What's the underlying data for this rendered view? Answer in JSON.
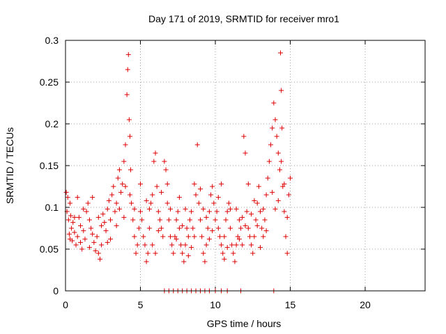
{
  "chart_data": {
    "type": "scatter",
    "title": "Day 171 of 2019, SRMTID for receiver mro1",
    "xlabel": "GPS time / hours",
    "ylabel": "SRMTID / TECUs",
    "xlim": [
      0,
      24
    ],
    "ylim": [
      0,
      0.3
    ],
    "xticks": [
      0,
      5,
      10,
      15,
      20
    ],
    "xtick_labels": [
      "0",
      "5",
      "10",
      "15",
      "20"
    ],
    "yticks": [
      0,
      0.05,
      0.1,
      0.15,
      0.2,
      0.25,
      0.3
    ],
    "ytick_labels": [
      "0",
      "0.05",
      "0.1",
      "0.15",
      "0.2",
      "0.25",
      "0.3"
    ],
    "grid": true,
    "marker": "+",
    "color": "#dd0000",
    "series": [
      {
        "name": "SRMTID",
        "points": [
          [
            0.05,
            0.118
          ],
          [
            0.1,
            0.095
          ],
          [
            0.15,
            0.112
          ],
          [
            0.2,
            0.085
          ],
          [
            0.25,
            0.068
          ],
          [
            0.3,
            0.105
          ],
          [
            0.35,
            0.09
          ],
          [
            0.4,
            0.075
          ],
          [
            0.45,
            0.06
          ],
          [
            0.5,
            0.082
          ],
          [
            0.6,
            0.07
          ],
          [
            0.7,
            0.055
          ],
          [
            0.8,
            0.065
          ],
          [
            0.9,
            0.088
          ],
          [
            1.0,
            0.078
          ],
          [
            1.1,
            0.05
          ],
          [
            1.2,
            0.072
          ],
          [
            1.3,
            0.062
          ],
          [
            1.4,
            0.095
          ],
          [
            1.5,
            0.105
          ],
          [
            1.6,
            0.085
          ],
          [
            1.7,
            0.075
          ],
          [
            1.8,
            0.068
          ],
          [
            1.9,
            0.058
          ],
          [
            2.0,
            0.048
          ],
          [
            2.1,
            0.065
          ],
          [
            2.2,
            0.045
          ],
          [
            2.3,
            0.038
          ],
          [
            2.4,
            0.055
          ],
          [
            2.5,
            0.092
          ],
          [
            2.6,
            0.082
          ],
          [
            2.7,
            0.072
          ],
          [
            2.8,
            0.098
          ],
          [
            2.9,
            0.108
          ],
          [
            3.0,
            0.085
          ],
          [
            3.1,
            0.115
          ],
          [
            3.2,
            0.125
          ],
          [
            3.3,
            0.095
          ],
          [
            3.4,
            0.105
          ],
          [
            3.5,
            0.135
          ],
          [
            3.6,
            0.145
          ],
          [
            3.7,
            0.118
          ],
          [
            3.8,
            0.128
          ],
          [
            3.9,
            0.155
          ],
          [
            4.0,
            0.175
          ],
          [
            4.1,
            0.235
          ],
          [
            4.15,
            0.265
          ],
          [
            4.2,
            0.283
          ],
          [
            4.25,
            0.205
          ],
          [
            4.3,
            0.185
          ],
          [
            4.35,
            0.145
          ],
          [
            4.4,
            0.105
          ],
          [
            4.5,
            0.085
          ],
          [
            4.6,
            0.065
          ],
          [
            4.7,
            0.045
          ],
          [
            4.8,
            0.055
          ],
          [
            4.9,
            0.075
          ],
          [
            5.0,
            0.095
          ],
          [
            5.1,
            0.085
          ],
          [
            5.2,
            0.065
          ],
          [
            5.3,
            0.055
          ],
          [
            5.4,
            0.035
          ],
          [
            5.5,
            0.045
          ],
          [
            5.6,
            0.075
          ],
          [
            5.7,
            0.105
          ],
          [
            5.8,
            0.115
          ],
          [
            5.9,
            0.155
          ],
          [
            6.0,
            0.165
          ],
          [
            6.1,
            0.125
          ],
          [
            6.2,
            0.095
          ],
          [
            6.3,
            0.085
          ],
          [
            6.4,
            0.075
          ],
          [
            6.5,
            0.065
          ],
          [
            6.6,
            0.155
          ],
          [
            6.7,
            0.145
          ],
          [
            6.8,
            0.105
          ],
          [
            6.9,
            0.085
          ],
          [
            7.0,
            0.065
          ],
          [
            7.1,
            0.055
          ],
          [
            7.2,
            0.045
          ],
          [
            7.3,
            0.065
          ],
          [
            7.4,
            0.085
          ],
          [
            7.5,
            0.095
          ],
          [
            7.6,
            0.075
          ],
          [
            7.7,
            0.055
          ],
          [
            7.8,
            0.045
          ],
          [
            7.9,
            0.035
          ],
          [
            8.0,
            0.055
          ],
          [
            8.1,
            0.075
          ],
          [
            8.2,
            0.065
          ],
          [
            8.3,
            0.085
          ],
          [
            8.4,
            0.095
          ],
          [
            8.5,
            0.075
          ],
          [
            8.6,
            0.065
          ],
          [
            8.7,
            0.115
          ],
          [
            8.8,
            0.175
          ],
          [
            8.9,
            0.105
          ],
          [
            9.0,
            0.085
          ],
          [
            9.1,
            0.065
          ],
          [
            9.2,
            0.045
          ],
          [
            9.3,
            0.035
          ],
          [
            9.4,
            0.055
          ],
          [
            9.5,
            0.075
          ],
          [
            9.6,
            0.095
          ],
          [
            9.7,
            0.115
          ],
          [
            9.8,
            0.125
          ],
          [
            9.9,
            0.105
          ],
          [
            10.0,
            0.085
          ],
          [
            10.1,
            0.095
          ],
          [
            10.2,
            0.075
          ],
          [
            10.3,
            0.065
          ],
          [
            10.4,
            0.055
          ],
          [
            10.5,
            0.045
          ],
          [
            10.6,
            0.065
          ],
          [
            10.7,
            0.085
          ],
          [
            10.8,
            0.095
          ],
          [
            10.9,
            0.105
          ],
          [
            11.0,
            0.075
          ],
          [
            11.1,
            0.055
          ],
          [
            11.2,
            0.045
          ],
          [
            11.3,
            0.035
          ],
          [
            11.4,
            0.055
          ],
          [
            11.5,
            0.065
          ],
          [
            11.6,
            0.085
          ],
          [
            11.7,
            0.075
          ],
          [
            11.8,
            0.055
          ],
          [
            11.9,
            0.185
          ],
          [
            12.0,
            0.165
          ],
          [
            12.1,
            0.095
          ],
          [
            12.2,
            0.075
          ],
          [
            12.3,
            0.065
          ],
          [
            12.4,
            0.055
          ],
          [
            12.5,
            0.045
          ],
          [
            12.6,
            0.065
          ],
          [
            12.7,
            0.085
          ],
          [
            12.8,
            0.105
          ],
          [
            12.9,
            0.125
          ],
          [
            13.0,
            0.095
          ],
          [
            13.1,
            0.075
          ],
          [
            13.2,
            0.065
          ],
          [
            13.3,
            0.085
          ],
          [
            13.4,
            0.115
          ],
          [
            13.5,
            0.135
          ],
          [
            13.6,
            0.155
          ],
          [
            13.7,
            0.175
          ],
          [
            13.8,
            0.195
          ],
          [
            13.9,
            0.225
          ],
          [
            14.0,
            0.205
          ],
          [
            14.1,
            0.185
          ],
          [
            14.2,
            0.165
          ],
          [
            14.3,
            0.145
          ],
          [
            14.35,
            0.285
          ],
          [
            14.4,
            0.24
          ],
          [
            14.45,
            0.195
          ],
          [
            14.5,
            0.125
          ],
          [
            14.6,
            0.095
          ],
          [
            14.7,
            0.065
          ],
          [
            14.8,
            0.045
          ],
          [
            14.9,
            0.115
          ],
          [
            15.0,
            0.135
          ],
          [
            0.3,
            0.062
          ],
          [
            0.6,
            0.088
          ],
          [
            1.2,
            0.098
          ],
          [
            1.8,
            0.112
          ],
          [
            2.4,
            0.078
          ],
          [
            3.0,
            0.062
          ],
          [
            3.6,
            0.098
          ],
          [
            4.3,
            0.115
          ],
          [
            5.0,
            0.128
          ],
          [
            5.6,
            0.098
          ],
          [
            6.2,
            0.072
          ],
          [
            6.8,
            0.128
          ],
          [
            7.4,
            0.062
          ],
          [
            8.0,
            0.098
          ],
          [
            8.6,
            0.128
          ],
          [
            9.2,
            0.098
          ],
          [
            9.8,
            0.072
          ],
          [
            10.4,
            0.128
          ],
          [
            11.0,
            0.098
          ],
          [
            11.6,
            0.062
          ],
          [
            12.2,
            0.128
          ],
          [
            12.8,
            0.078
          ],
          [
            13.4,
            0.072
          ],
          [
            14.0,
            0.098
          ],
          [
            14.6,
            0.128
          ],
          [
            0.8,
            0.112
          ],
          [
            1.6,
            0.052
          ],
          [
            2.2,
            0.088
          ],
          [
            2.8,
            0.058
          ],
          [
            3.4,
            0.078
          ],
          [
            3.9,
            0.088
          ],
          [
            4.6,
            0.098
          ],
          [
            5.4,
            0.108
          ],
          [
            6.4,
            0.118
          ],
          [
            7.0,
            0.098
          ],
          [
            7.6,
            0.112
          ],
          [
            8.4,
            0.052
          ],
          [
            9.0,
            0.122
          ],
          [
            9.6,
            0.062
          ],
          [
            10.2,
            0.112
          ],
          [
            10.8,
            0.052
          ],
          [
            11.4,
            0.098
          ],
          [
            12.0,
            0.078
          ],
          [
            12.6,
            0.108
          ],
          [
            13.2,
            0.098
          ],
          [
            13.8,
            0.118
          ],
          [
            14.2,
            0.108
          ],
          [
            14.8,
            0.088
          ],
          [
            1.0,
            0.058
          ],
          [
            4.0,
            0.125
          ],
          [
            5.8,
            0.055
          ],
          [
            7.8,
            0.078
          ],
          [
            9.4,
            0.088
          ],
          [
            11.8,
            0.088
          ],
          [
            13.0,
            0.052
          ],
          [
            14.4,
            0.155
          ],
          [
            6.0,
            0.045
          ],
          [
            8.2,
            0.042
          ],
          [
            10.6,
            0.038
          ],
          [
            12.4,
            0.092
          ],
          [
            6.6,
            0.0
          ],
          [
            6.9,
            0.0
          ],
          [
            7.2,
            0.0
          ],
          [
            7.5,
            0.0
          ],
          [
            7.8,
            0.0
          ],
          [
            8.1,
            0.0
          ],
          [
            8.4,
            0.0
          ],
          [
            8.7,
            0.0
          ],
          [
            9.0,
            0.0
          ],
          [
            9.3,
            0.0
          ],
          [
            9.6,
            0.0
          ],
          [
            10.0,
            0.0
          ],
          [
            10.4,
            0.0
          ],
          [
            10.8,
            0.0
          ],
          [
            11.7,
            0.0
          ],
          [
            13.9,
            0.0
          ]
        ]
      }
    ]
  }
}
